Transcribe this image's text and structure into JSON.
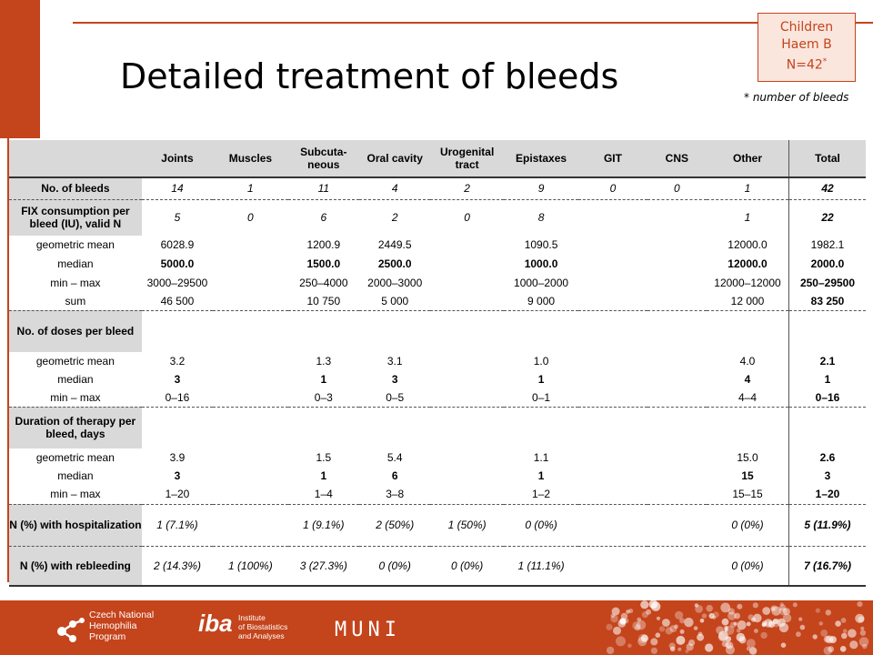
{
  "title": "Detailed treatment of bleeds",
  "badge": {
    "line1": "Children",
    "line2": "Haem B",
    "line3": "N=42",
    "mark": "*"
  },
  "footnote": "* number of bleeds",
  "table": {
    "columns": [
      "Joints",
      "Muscles",
      "Subcuta-\nneous",
      "Oral cavity",
      "Urogenital\ntract",
      "Epistaxes",
      "GIT",
      "CNS",
      "Other",
      "Total"
    ],
    "rows": [
      {
        "label": "No. of bleeds",
        "cells": [
          "14",
          "1",
          "11",
          "4",
          "2",
          "9",
          "0",
          "0",
          "1",
          "42"
        ]
      },
      {
        "label": "FIX consumption per bleed (IU), valid N",
        "cells": [
          "5",
          "0",
          "6",
          "2",
          "0",
          "8",
          "",
          "",
          "1",
          "22"
        ]
      },
      {
        "label": "geometric mean",
        "cells": [
          "6028.9",
          "",
          "1200.9",
          "2449.5",
          "",
          "1090.5",
          "",
          "",
          "12000.0",
          "1982.1"
        ]
      },
      {
        "label": "median",
        "cells": [
          "5000.0",
          "",
          "1500.0",
          "2500.0",
          "",
          "1000.0",
          "",
          "",
          "12000.0",
          "2000.0"
        ]
      },
      {
        "label": "min – max",
        "cells": [
          "3000–29500",
          "",
          "250–4000",
          "2000–3000",
          "",
          "1000–2000",
          "",
          "",
          "12000–12000",
          "250–29500"
        ]
      },
      {
        "label": "sum",
        "cells": [
          "46 500",
          "",
          "10 750",
          "5 000",
          "",
          "9 000",
          "",
          "",
          "12 000",
          "83 250"
        ]
      },
      {
        "label": "No. of doses per bleed"
      },
      {
        "label": "geometric mean",
        "cells": [
          "3.2",
          "",
          "1.3",
          "3.1",
          "",
          "1.0",
          "",
          "",
          "4.0",
          "2.1"
        ]
      },
      {
        "label": "median",
        "cells": [
          "3",
          "",
          "1",
          "3",
          "",
          "1",
          "",
          "",
          "4",
          "1"
        ]
      },
      {
        "label": "min – max",
        "cells": [
          "0–16",
          "",
          "0–3",
          "0–5",
          "",
          "0–1",
          "",
          "",
          "4–4",
          "0–16"
        ]
      },
      {
        "label": "Duration of therapy per bleed, days"
      },
      {
        "label": "geometric mean",
        "cells": [
          "3.9",
          "",
          "1.5",
          "5.4",
          "",
          "1.1",
          "",
          "",
          "15.0",
          "2.6"
        ]
      },
      {
        "label": "median",
        "cells": [
          "3",
          "",
          "1",
          "6",
          "",
          "1",
          "",
          "",
          "15",
          "3"
        ]
      },
      {
        "label": "min – max",
        "cells": [
          "1–20",
          "",
          "1–4",
          "3–8",
          "",
          "1–2",
          "",
          "",
          "15–15",
          "1–20"
        ]
      },
      {
        "label": "N (%) with hospitalization",
        "cells": [
          "1 (7.1%)",
          "",
          "1 (9.1%)",
          "2 (50%)",
          "1 (50%)",
          "0 (0%)",
          "",
          "",
          "0 (0%)",
          "5 (11.9%)"
        ]
      },
      {
        "label": "N (%) with rebleeding",
        "cells": [
          "2 (14.3%)",
          "1 (100%)",
          "3 (27.3%)",
          "0 (0%)",
          "0 (0%)",
          "1 (11.1%)",
          "",
          "",
          "0 (0%)",
          "7 (16.7%)"
        ]
      }
    ]
  },
  "footer": {
    "cnhp": [
      "Czech National",
      "Hemophilia",
      "Program"
    ],
    "iba_mark": "iba",
    "iba_text": [
      "Institute",
      "of Biostatistics",
      "and Analyses"
    ],
    "muni": "MUNI"
  },
  "colors": {
    "accent": "#c4441c",
    "badge_bg": "#fbe6dd",
    "label_bg": "#d9d9d9"
  }
}
